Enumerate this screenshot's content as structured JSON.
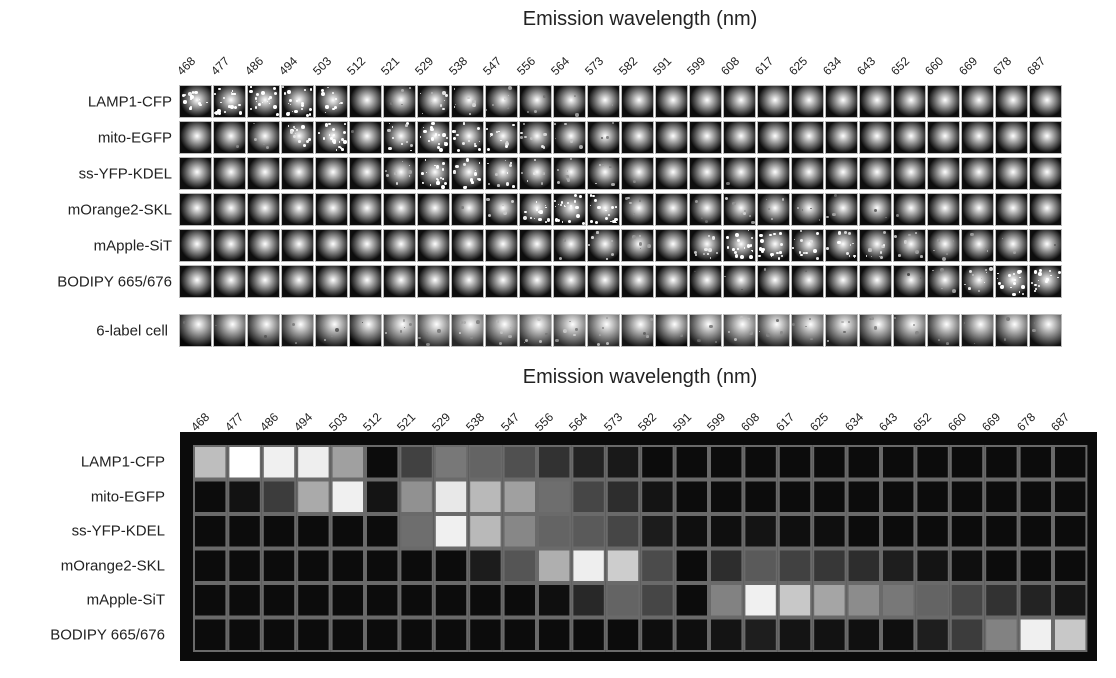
{
  "chart_data": {
    "type": "heatmap",
    "title": "",
    "xlabel": "Emission wavelength (nm)",
    "x_ticks": [
      468,
      477,
      486,
      494,
      503,
      512,
      521,
      529,
      538,
      547,
      556,
      564,
      573,
      582,
      591,
      599,
      608,
      617,
      625,
      634,
      643,
      652,
      660,
      669,
      678,
      687
    ],
    "rows": [
      "LAMP1-CFP",
      "mito-EGFP",
      "ss-YFP-KDEL",
      "mOrange2-SKL",
      "mApple-SiT",
      "BODIPY 665/676"
    ],
    "value_scale": "grayscale intensity 0-255",
    "values": [
      [
        190,
        255,
        240,
        238,
        160,
        12,
        65,
        120,
        100,
        80,
        50,
        35,
        25,
        12,
        12,
        12,
        12,
        12,
        12,
        12,
        12,
        12,
        12,
        12,
        12,
        12
      ],
      [
        12,
        18,
        60,
        170,
        240,
        20,
        145,
        232,
        185,
        160,
        110,
        70,
        45,
        20,
        12,
        12,
        12,
        12,
        12,
        12,
        12,
        12,
        12,
        12,
        12,
        12
      ],
      [
        12,
        12,
        12,
        12,
        12,
        12,
        110,
        240,
        185,
        135,
        100,
        90,
        70,
        28,
        15,
        15,
        20,
        15,
        15,
        12,
        12,
        12,
        12,
        12,
        12,
        12
      ],
      [
        12,
        12,
        12,
        12,
        12,
        12,
        12,
        12,
        28,
        85,
        175,
        238,
        205,
        75,
        12,
        45,
        90,
        65,
        55,
        45,
        30,
        20,
        15,
        12,
        12,
        12
      ],
      [
        12,
        12,
        12,
        12,
        12,
        12,
        12,
        12,
        12,
        12,
        15,
        40,
        100,
        70,
        12,
        130,
        240,
        200,
        165,
        140,
        120,
        100,
        70,
        50,
        35,
        22
      ],
      [
        12,
        12,
        12,
        12,
        12,
        12,
        12,
        12,
        12,
        12,
        12,
        12,
        12,
        14,
        14,
        20,
        30,
        20,
        18,
        16,
        15,
        30,
        60,
        130,
        240,
        200
      ]
    ]
  },
  "images": {
    "xlabel": "Emission wavelength (nm)",
    "rows": [
      "LAMP1-CFP",
      "mito-EGFP",
      "ss-YFP-KDEL",
      "mOrange2-SKL",
      "mApple-SiT",
      "BODIPY 665/676"
    ],
    "combined_row": "6-label cell",
    "combined_intensity": [
      15,
      20,
      30,
      55,
      60,
      15,
      110,
      130,
      120,
      115,
      120,
      130,
      125,
      60,
      12,
      80,
      110,
      95,
      90,
      85,
      70,
      65,
      55,
      55,
      55,
      50
    ],
    "scale_bar": true
  }
}
